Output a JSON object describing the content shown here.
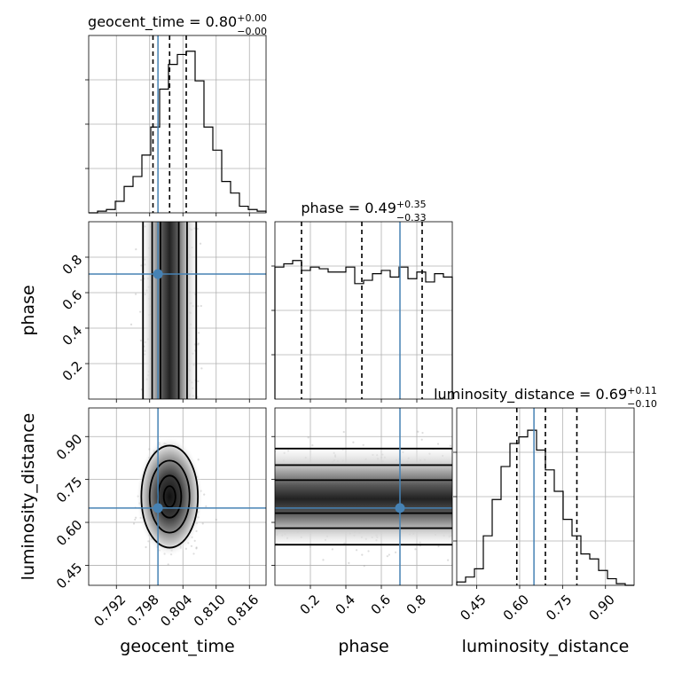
{
  "chart_data": {
    "type": "scatter",
    "kind": "corner plot",
    "parameters": [
      {
        "key": "geocent_time",
        "label": "geocent_time",
        "title": "geocent_time = 0.80",
        "title_sup": "+0.00",
        "title_sub": "−0.00",
        "range": [
          0.787,
          0.819
        ],
        "ticks": [
          0.792,
          0.798,
          0.804,
          0.81,
          0.816
        ],
        "tick_labels": [
          "0.792",
          "0.798",
          "0.804",
          "0.810",
          "0.816"
        ],
        "quantiles": [
          0.7986,
          0.8016,
          0.8046
        ],
        "truth": 0.7995,
        "hist": [
          0,
          0.01,
          0.02,
          0.07,
          0.16,
          0.22,
          0.35,
          0.52,
          0.75,
          0.9,
          0.96,
          0.98,
          0.8,
          0.52,
          0.38,
          0.19,
          0.12,
          0.04,
          0.02,
          0.01
        ]
      },
      {
        "key": "phase",
        "label": "phase",
        "title": "phase = 0.49",
        "title_sup": "+0.35",
        "title_sub": "−0.33",
        "range": [
          0.0,
          1.0
        ],
        "ticks": [
          0.2,
          0.4,
          0.6,
          0.8
        ],
        "tick_labels": [
          "0.2",
          "0.4",
          "0.6",
          "0.8"
        ],
        "quantiles": [
          0.15,
          0.49,
          0.83
        ],
        "truth": 0.705,
        "hist": [
          0.8,
          0.82,
          0.84,
          0.78,
          0.8,
          0.79,
          0.77,
          0.77,
          0.8,
          0.7,
          0.72,
          0.76,
          0.78,
          0.74,
          0.8,
          0.73,
          0.77,
          0.71,
          0.76,
          0.74
        ]
      },
      {
        "key": "luminosity_distance",
        "label": "luminosity_distance",
        "title": "luminosity_distance = 0.69",
        "title_sup": "+0.11",
        "title_sub": "−0.10",
        "range": [
          0.38,
          1.0
        ],
        "ticks": [
          0.45,
          0.6,
          0.75,
          0.9
        ],
        "tick_labels": [
          "0.45",
          "0.60",
          "0.75",
          "0.90"
        ],
        "quantiles": [
          0.59,
          0.69,
          0.8
        ],
        "truth": 0.65,
        "hist": [
          0.02,
          0.05,
          0.1,
          0.3,
          0.52,
          0.72,
          0.86,
          0.9,
          0.94,
          0.82,
          0.7,
          0.57,
          0.4,
          0.3,
          0.19,
          0.16,
          0.09,
          0.04,
          0.01,
          0.0
        ]
      }
    ],
    "truth_color": "#4682b4",
    "grid": true
  }
}
